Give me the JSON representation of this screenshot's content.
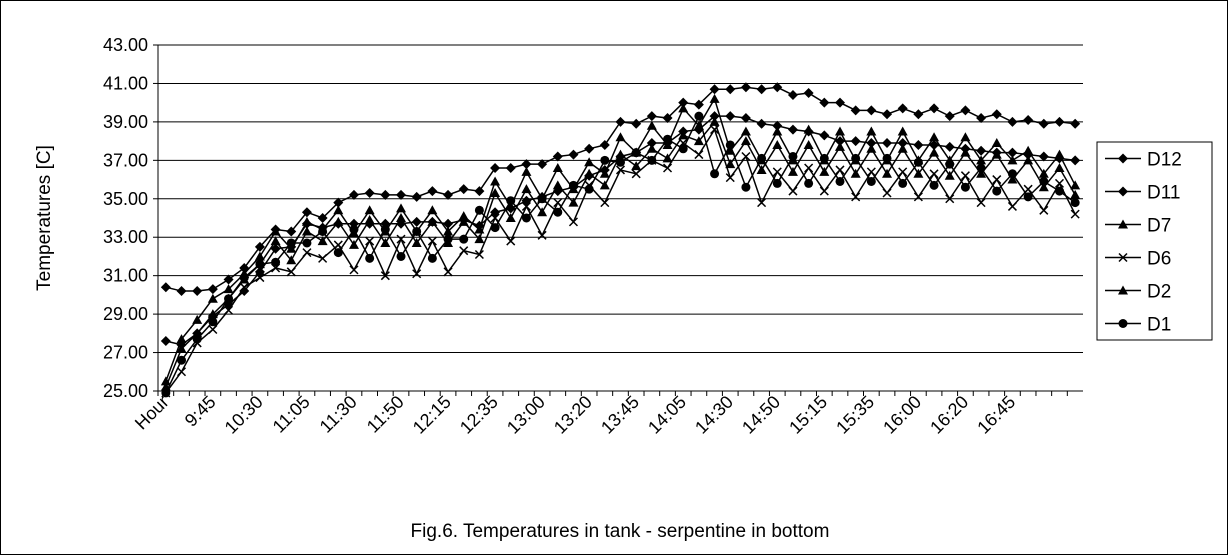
{
  "chart_data": {
    "type": "line",
    "title": "Fig.6. Temperatures in tank - serpentine in bottom",
    "y_label": "Temperatures [C]",
    "categories": [
      "Hour",
      null,
      null,
      "9:45",
      null,
      null,
      "10:30",
      null,
      null,
      "11:05",
      null,
      null,
      "11:30",
      null,
      null,
      "11:50",
      null,
      null,
      "12:15",
      null,
      null,
      "12:35",
      null,
      null,
      "13:00",
      null,
      null,
      "13:20",
      null,
      null,
      "13:45",
      null,
      null,
      "14:05",
      null,
      null,
      "14:30",
      null,
      null,
      "14:50",
      null,
      null,
      "15:15",
      null,
      null,
      "15:35",
      null,
      null,
      "16:00",
      null,
      null,
      "16:20",
      null,
      null,
      "16:45",
      null,
      null,
      null,
      null
    ],
    "ylim": [
      25,
      43
    ],
    "yticks": [
      {
        "value": 25,
        "label": "25.00"
      },
      {
        "value": 27,
        "label": "27.00"
      },
      {
        "value": 29,
        "label": "29.00"
      },
      {
        "value": 31,
        "label": "31.00"
      },
      {
        "value": 33,
        "label": "33.00"
      },
      {
        "value": 35,
        "label": "35.00"
      },
      {
        "value": 37,
        "label": "37.00"
      },
      {
        "value": 39,
        "label": "39.00"
      },
      {
        "value": 41,
        "label": "41.00"
      },
      {
        "value": 43,
        "label": "43.00"
      }
    ],
    "grid": true,
    "legend": "right",
    "series": [
      {
        "name": "D12",
        "color": "#000000",
        "marker": "diamond",
        "values": [
          30.4,
          30.2,
          30.2,
          30.3,
          30.8,
          31.4,
          32.5,
          33.4,
          33.3,
          34.3,
          34.0,
          34.8,
          35.2,
          35.3,
          35.2,
          35.2,
          35.1,
          35.4,
          35.2,
          35.5,
          35.4,
          36.6,
          36.6,
          36.8,
          36.8,
          37.2,
          37.3,
          37.6,
          37.8,
          39.0,
          38.9,
          39.3,
          39.2,
          40.0,
          39.9,
          40.7,
          40.7,
          40.8,
          40.7,
          40.8,
          40.4,
          40.5,
          40.0,
          40.0,
          39.6,
          39.6,
          39.4,
          39.7,
          39.4,
          39.7,
          39.3,
          39.6,
          39.2,
          39.4,
          39.0,
          39.1,
          38.9,
          39.0,
          38.9
        ]
      },
      {
        "name": "D11",
        "color": "#000000",
        "marker": "diamond",
        "values": [
          27.6,
          27.4,
          28.0,
          28.9,
          29.5,
          30.2,
          31.2,
          32.4,
          32.5,
          33.7,
          33.5,
          33.7,
          33.7,
          33.7,
          33.7,
          33.7,
          33.8,
          33.8,
          33.7,
          33.9,
          33.6,
          34.3,
          34.5,
          34.9,
          35.1,
          35.4,
          35.6,
          36.2,
          36.5,
          37.2,
          37.4,
          37.9,
          37.9,
          38.5,
          38.6,
          39.3,
          39.3,
          39.2,
          38.9,
          38.8,
          38.6,
          38.5,
          38.3,
          38.0,
          38.0,
          37.9,
          37.9,
          37.9,
          37.8,
          37.8,
          37.7,
          37.6,
          37.5,
          37.4,
          37.4,
          37.3,
          37.2,
          37.1,
          37.0
        ]
      },
      {
        "name": "D7",
        "color": "#000000",
        "marker": "triangle",
        "values": [
          25.5,
          27.7,
          28.7,
          29.8,
          30.3,
          31.1,
          32.0,
          33.3,
          32.4,
          33.8,
          33.4,
          34.4,
          33.2,
          34.4,
          33.3,
          34.5,
          33.3,
          34.4,
          33.3,
          34.1,
          33.4,
          35.9,
          34.6,
          36.4,
          35.0,
          36.6,
          35.5,
          36.9,
          36.3,
          38.2,
          37.4,
          38.8,
          37.8,
          39.7,
          38.8,
          40.2,
          37.5,
          38.5,
          37.0,
          38.5,
          37.0,
          38.6,
          37.0,
          38.5,
          37.0,
          38.5,
          37.0,
          38.5,
          37.0,
          38.2,
          37.0,
          38.2,
          37.0,
          37.9,
          37.0,
          37.5,
          36.3,
          37.3,
          35.7
        ]
      },
      {
        "name": "D6",
        "color": "#000000",
        "marker": "x",
        "values": [
          24.9,
          26.0,
          27.5,
          28.2,
          29.2,
          30.4,
          30.9,
          31.4,
          31.2,
          32.2,
          31.9,
          32.6,
          31.3,
          32.8,
          31.0,
          32.9,
          31.1,
          32.8,
          31.2,
          32.3,
          32.1,
          34.0,
          32.8,
          34.6,
          33.1,
          34.8,
          33.8,
          35.7,
          34.8,
          36.5,
          36.3,
          37.0,
          36.6,
          37.9,
          37.3,
          38.6,
          36.1,
          37.2,
          34.8,
          36.4,
          35.4,
          36.6,
          35.4,
          36.5,
          35.1,
          36.4,
          35.3,
          36.4,
          35.1,
          36.3,
          35.0,
          36.2,
          34.8,
          36.0,
          34.6,
          35.5,
          34.4,
          35.8,
          34.2
        ]
      },
      {
        "name": "D2",
        "color": "#000000",
        "marker": "triangle",
        "values": [
          25.2,
          27.2,
          28.0,
          29.0,
          29.8,
          30.8,
          31.6,
          32.8,
          31.8,
          33.3,
          32.8,
          33.8,
          32.6,
          33.9,
          32.7,
          34.0,
          32.7,
          33.8,
          32.7,
          33.8,
          32.9,
          35.3,
          34.0,
          35.5,
          34.3,
          35.7,
          34.8,
          36.3,
          35.7,
          37.3,
          36.7,
          37.6,
          37.1,
          38.3,
          38.0,
          39.0,
          36.8,
          38.0,
          36.5,
          37.8,
          36.4,
          37.8,
          36.4,
          37.7,
          36.3,
          37.6,
          36.3,
          37.6,
          36.3,
          37.4,
          36.2,
          37.4,
          36.3,
          37.3,
          36.0,
          37.0,
          35.6,
          36.6,
          35.2
        ]
      },
      {
        "name": "D1",
        "color": "#000000",
        "marker": "circle",
        "values": [
          24.9,
          26.6,
          27.7,
          28.6,
          29.8,
          30.9,
          31.6,
          31.7,
          32.7,
          32.7,
          33.3,
          32.2,
          33.4,
          31.9,
          33.4,
          32.0,
          33.3,
          31.9,
          32.9,
          32.9,
          34.4,
          33.5,
          34.9,
          34.0,
          35.0,
          34.3,
          35.7,
          35.5,
          37.0,
          36.9,
          37.4,
          37.0,
          38.1,
          37.6,
          39.3,
          36.3,
          37.8,
          35.6,
          37.1,
          35.8,
          37.2,
          35.8,
          37.1,
          35.9,
          37.1,
          35.9,
          37.1,
          35.8,
          36.9,
          35.7,
          36.8,
          35.6,
          36.6,
          35.4,
          36.3,
          35.1,
          35.9,
          35.4,
          34.8
        ]
      }
    ]
  }
}
